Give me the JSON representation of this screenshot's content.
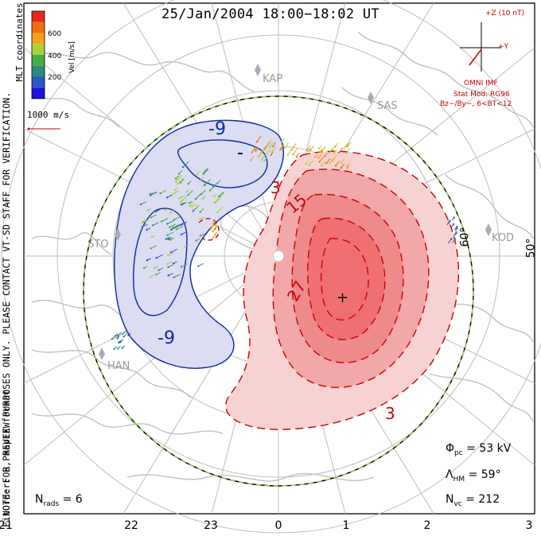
{
  "title": "25/Jan/2004  18:00−18:02  UT",
  "note_line1": "NOTE: FOR PREVIEW PURPOSES ONLY. PLEASE CONTACT VT-SD STAFF FOR VERIFICATION.",
  "note_line2": "FitOrder: 8, mapEX format",
  "coords_label": "MLT coordinates",
  "colorbar": {
    "unit_label": "Vel [m/s]",
    "tick_labels": [
      "600",
      "400",
      "200"
    ],
    "colors": [
      "#e8281c",
      "#f07010",
      "#f5a318",
      "#a8d43a",
      "#3fae46",
      "#2e8a7c",
      "#2c56c8",
      "#1a10e0"
    ]
  },
  "scale_vector": {
    "label": "1000 m/s",
    "color": "#cc0000"
  },
  "imf": {
    "plus_z": "+Z (10 nT)",
    "plus_y": "+Y",
    "source": "OMNI IMF",
    "model": "Stat Mod: RG96",
    "condition": "Bz−/By−, 6<BT<12"
  },
  "stations": [
    "KAP",
    "SAS",
    "STO",
    "HAN",
    "KOD"
  ],
  "latitude_labels": [
    "50°",
    "60°"
  ],
  "contour_labels": [
    "-9",
    "-",
    "-9",
    "3",
    "15",
    "27",
    "3",
    "+"
  ],
  "stats": {
    "potential": {
      "symbol": "Φ",
      "sub": "pc",
      "value": "= 53 kV"
    },
    "hm": {
      "symbol": "Λ",
      "sub": "HM",
      "value": "= 59°"
    },
    "nvc": {
      "symbol": "N",
      "sub": "vc",
      "value": "= 212"
    },
    "nrads": {
      "symbol": "N",
      "sub": "rads",
      "value": "= 6"
    }
  },
  "mlt_ticks": [
    "21",
    "22",
    "23",
    "0",
    "1",
    "2",
    "3"
  ],
  "colors": {
    "negative_cell": "#dcdcf2",
    "negative_contour": "#0a2aa0",
    "positive_fill_light": "#f6d2d2",
    "positive_fill_mid": "#f2a8a8",
    "positive_fill_dark": "#ee7070",
    "positive_contour": "#cc0000",
    "coast": "#c0c0c0",
    "grid": "#bdbdbd",
    "hm_boundary_a": "#000000",
    "hm_boundary_b": "#8fd64a"
  }
}
